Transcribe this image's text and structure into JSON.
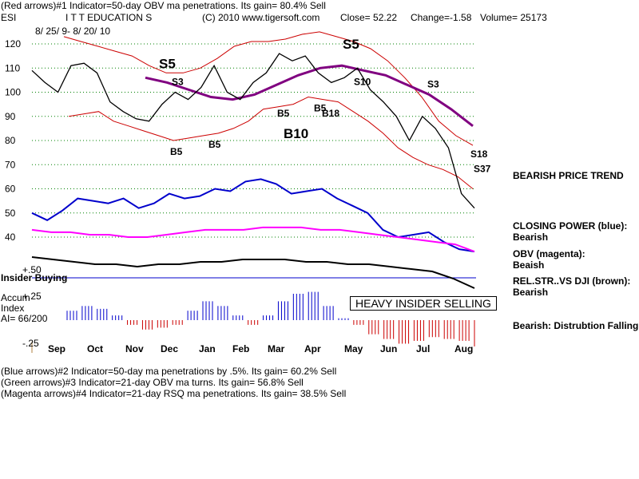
{
  "header": {
    "line1": "(Red arrows)#1 Indicator=50-day OBV ma penetrations. Its gain= 80.4% Sell",
    "symbol": "ESI",
    "company": "I T T EDUCATION S",
    "copyright": "(C) 2010 www.tigersoft.com",
    "close": "Close=  52.22",
    "change": "Change=-1.58",
    "volume": "Volume= 25173",
    "daterange": "8/ 25/ 9- 8/ 20/ 10"
  },
  "footer": {
    "line1": "(Blue arrows)#2 Indicator=50-day ma penetrations by .5%. Its gain= 60.2% Sell",
    "line2": "(Green arrows)#3 Indicator=21-day OBV ma turns. Its gain= 56.8% Sell",
    "line3": "(Magenta arrows)#4 Indicator=21-day RSQ ma penetrations. Its gain= 38.5% Sell"
  },
  "notes": {
    "trend": "BEARISH PRICE TREND",
    "cp1": "CLOSING POWER (blue):",
    "cp2": "Bearish",
    "obv1": "OBV (magenta):",
    "obv2": "Beaish",
    "rs1": "REL.STR..VS DJI (brown):",
    "rs2": "Bearish",
    "accum": "Bearish: Distrubtion Falling.",
    "insider_box": "HEAVY INSIDER SELLING",
    "insider_label": "Insider Buying",
    "accum_label1": "Accum",
    "accum_label2": "Index",
    "accum_label3": "AI= 66/200"
  },
  "colors": {
    "price": "#000000",
    "bands": "#cc0000",
    "ma": "#800080",
    "closing_power": "#0000cc",
    "obv": "#ff00ff",
    "relstr": "#000000",
    "accum_pos": "#0000cc",
    "accum_neg": "#cc0000",
    "grid": "#008000"
  },
  "chart_data": {
    "type": "line",
    "title": "I T T EDUCATION S",
    "symbol": "ESI",
    "x_ticks": [
      "Sep",
      "Oct",
      "Nov",
      "Dec",
      "Jan",
      "Feb",
      "Mar",
      "Apr",
      "May",
      "Jun",
      "Jul",
      "Aug"
    ],
    "y_ticks": [
      40,
      50,
      60,
      70,
      80,
      90,
      100,
      110,
      120
    ],
    "accum_ticks": [
      "+.50",
      "+.25",
      "-.25"
    ],
    "ylim": [
      40,
      125
    ],
    "grid": true,
    "signals": [
      {
        "label": "S5",
        "x": "Dec",
        "y": 108
      },
      {
        "label": "S3",
        "x": "Dec",
        "y": 103
      },
      {
        "label": "B5",
        "x": "Dec",
        "y": 74
      },
      {
        "label": "B5",
        "x": "Jan",
        "y": 77
      },
      {
        "label": "B5",
        "x": "Mar",
        "y": 90
      },
      {
        "label": "B10",
        "x": "Mar",
        "y": 81
      },
      {
        "label": "B5",
        "x": "Apr",
        "y": 92
      },
      {
        "label": "B18",
        "x": "Apr",
        "y": 90
      },
      {
        "label": "S5",
        "x": "May",
        "y": 116
      },
      {
        "label": "S10",
        "x": "May",
        "y": 103
      },
      {
        "label": "S3",
        "x": "Jul",
        "y": 102
      },
      {
        "label": "S18",
        "x": "Aug",
        "y": 73
      },
      {
        "label": "S37",
        "x": "Aug",
        "y": 67
      }
    ],
    "series": [
      {
        "key": "price",
        "values": [
          109,
          104,
          100,
          111,
          112,
          108,
          96,
          92,
          89,
          88,
          95,
          100,
          97,
          102,
          111,
          100,
          97,
          104,
          108,
          116,
          113,
          115,
          108,
          104,
          106,
          110,
          101,
          96,
          90,
          80,
          90,
          85,
          77,
          58,
          52
        ]
      },
      {
        "key": "upper_band",
        "values": [
          123,
          121,
          119,
          117,
          115,
          111,
          108,
          108,
          110,
          114,
          119,
          121,
          121,
          122,
          124,
          125,
          123,
          121,
          118,
          113,
          106,
          98,
          88,
          82,
          78
        ]
      },
      {
        "key": "lower_band",
        "values": [
          90,
          91,
          92,
          88,
          86,
          84,
          82,
          80,
          81,
          82,
          83,
          85,
          88,
          93,
          94,
          95,
          98,
          97,
          96,
          92,
          88,
          83,
          77,
          73,
          70,
          68,
          65,
          60
        ]
      },
      {
        "key": "ma50",
        "values": [
          106,
          104,
          101,
          98,
          97,
          99,
          103,
          107,
          110,
          111,
          109,
          107,
          103,
          99,
          93,
          86
        ]
      },
      {
        "key": "closing_power",
        "values": [
          50,
          47,
          51,
          56,
          55,
          54,
          56,
          52,
          54,
          58,
          56,
          57,
          60,
          59,
          63,
          64,
          62,
          58,
          59,
          60,
          56,
          53,
          50,
          43,
          40,
          41,
          42,
          38,
          35,
          34
        ]
      },
      {
        "key": "obv",
        "values": [
          43,
          42,
          42,
          41,
          41,
          40,
          40,
          41,
          42,
          43,
          43,
          43,
          44,
          44,
          44,
          43,
          43,
          42,
          41,
          40,
          39,
          38,
          37,
          34
        ]
      },
      {
        "key": "rel_str",
        "values": [
          34,
          33,
          32,
          31,
          31,
          30,
          31,
          31,
          32,
          32,
          33,
          33,
          33,
          32,
          32,
          31,
          31,
          30,
          29,
          28,
          25,
          21
        ]
      },
      {
        "key": "accum",
        "values": [
          0.1,
          0.15,
          0.12,
          0.05,
          -0.05,
          -0.1,
          -0.08,
          -0.05,
          0.1,
          0.2,
          0.15,
          0.05,
          -0.05,
          0.05,
          0.2,
          0.28,
          0.3,
          0.15,
          0.02,
          -0.05,
          -0.15,
          -0.2,
          -0.25,
          -0.22,
          -0.18,
          -0.2,
          -0.22,
          -0.28
        ]
      }
    ]
  }
}
